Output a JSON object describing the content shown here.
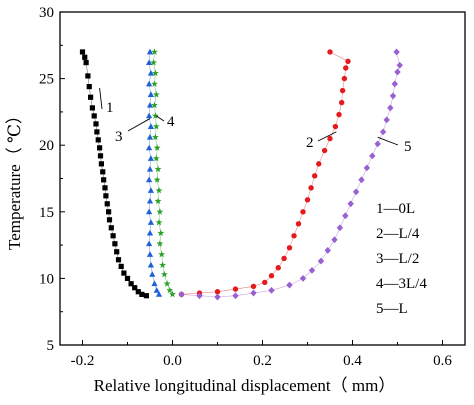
{
  "chart_data": {
    "type": "scatter",
    "xlabel": "Relative longitudinal displacement（ mm）",
    "ylabel": "Temperature（ ℃）",
    "xlim": [
      -0.25,
      0.65
    ],
    "ylim": [
      5,
      30
    ],
    "xticks": [
      "-0.2",
      "0.0",
      "0.2",
      "0.4",
      "0.6"
    ],
    "yticks": [
      "5",
      "10",
      "15",
      "20",
      "25",
      "30"
    ],
    "legend": [
      "1—0L",
      "2—L/4",
      "3—L/2",
      "4—3L/4",
      "5—L"
    ],
    "legend_position": "right-middle",
    "series": [
      {
        "label": "1",
        "color": "#000000",
        "marker": "square",
        "points": [
          [
            -0.2,
            27.0
          ],
          [
            -0.195,
            26.6
          ],
          [
            -0.192,
            26.2
          ],
          [
            -0.188,
            25.2
          ],
          [
            -0.185,
            24.4
          ],
          [
            -0.182,
            23.6
          ],
          [
            -0.178,
            22.8
          ],
          [
            -0.174,
            22.2
          ],
          [
            -0.17,
            21.6
          ],
          [
            -0.168,
            21.0
          ],
          [
            -0.165,
            20.4
          ],
          [
            -0.162,
            19.8
          ],
          [
            -0.16,
            19.2
          ],
          [
            -0.158,
            18.6
          ],
          [
            -0.155,
            18.0
          ],
          [
            -0.153,
            17.4
          ],
          [
            -0.15,
            16.8
          ],
          [
            -0.148,
            16.2
          ],
          [
            -0.145,
            15.6
          ],
          [
            -0.142,
            15.0
          ],
          [
            -0.14,
            14.4
          ],
          [
            -0.136,
            13.8
          ],
          [
            -0.132,
            13.2
          ],
          [
            -0.128,
            12.6
          ],
          [
            -0.124,
            12.0
          ],
          [
            -0.12,
            11.4
          ],
          [
            -0.114,
            10.9
          ],
          [
            -0.108,
            10.4
          ],
          [
            -0.1,
            10.0
          ],
          [
            -0.092,
            9.6
          ],
          [
            -0.084,
            9.3
          ],
          [
            -0.076,
            9.0
          ],
          [
            -0.068,
            8.8
          ],
          [
            -0.058,
            8.7
          ]
        ]
      },
      {
        "label": "2",
        "color": "#e41a1c",
        "marker": "circle",
        "points": [
          [
            0.02,
            8.8
          ],
          [
            0.06,
            8.9
          ],
          [
            0.1,
            9.0
          ],
          [
            0.14,
            9.2
          ],
          [
            0.18,
            9.4
          ],
          [
            0.205,
            9.7
          ],
          [
            0.22,
            10.2
          ],
          [
            0.235,
            10.8
          ],
          [
            0.248,
            11.5
          ],
          [
            0.26,
            12.3
          ],
          [
            0.27,
            13.2
          ],
          [
            0.28,
            14.1
          ],
          [
            0.29,
            15.0
          ],
          [
            0.3,
            15.9
          ],
          [
            0.308,
            16.8
          ],
          [
            0.316,
            17.7
          ],
          [
            0.325,
            18.6
          ],
          [
            0.338,
            19.6
          ],
          [
            0.35,
            20.5
          ],
          [
            0.362,
            21.4
          ],
          [
            0.37,
            22.3
          ],
          [
            0.376,
            23.2
          ],
          [
            0.378,
            24.1
          ],
          [
            0.382,
            25.0
          ],
          [
            0.385,
            25.8
          ],
          [
            0.39,
            26.3
          ],
          [
            0.35,
            27.0
          ]
        ]
      },
      {
        "label": "3",
        "color": "#1f5fd8",
        "marker": "triangle",
        "points": [
          [
            -0.05,
            27.0
          ],
          [
            -0.052,
            26.2
          ],
          [
            -0.048,
            25.4
          ],
          [
            -0.052,
            24.6
          ],
          [
            -0.048,
            23.8
          ],
          [
            -0.05,
            23.0
          ],
          [
            -0.052,
            22.2
          ],
          [
            -0.048,
            21.4
          ],
          [
            -0.05,
            20.6
          ],
          [
            -0.052,
            19.8
          ],
          [
            -0.048,
            19.0
          ],
          [
            -0.05,
            18.2
          ],
          [
            -0.052,
            17.4
          ],
          [
            -0.048,
            16.6
          ],
          [
            -0.05,
            15.8
          ],
          [
            -0.052,
            15.0
          ],
          [
            -0.048,
            14.2
          ],
          [
            -0.05,
            13.4
          ],
          [
            -0.052,
            12.6
          ],
          [
            -0.05,
            11.8
          ],
          [
            -0.048,
            11.0
          ],
          [
            -0.045,
            10.3
          ],
          [
            -0.04,
            9.6
          ],
          [
            -0.035,
            9.1
          ],
          [
            -0.03,
            8.8
          ]
        ]
      },
      {
        "label": "4",
        "color": "#2ca02c",
        "marker": "star",
        "points": [
          [
            -0.04,
            27.0
          ],
          [
            -0.042,
            26.2
          ],
          [
            -0.038,
            25.4
          ],
          [
            -0.04,
            24.6
          ],
          [
            -0.036,
            23.8
          ],
          [
            -0.04,
            23.0
          ],
          [
            -0.038,
            22.2
          ],
          [
            -0.036,
            21.4
          ],
          [
            -0.038,
            20.6
          ],
          [
            -0.034,
            19.8
          ],
          [
            -0.036,
            19.0
          ],
          [
            -0.032,
            18.2
          ],
          [
            -0.034,
            17.4
          ],
          [
            -0.03,
            16.6
          ],
          [
            -0.032,
            15.8
          ],
          [
            -0.028,
            15.0
          ],
          [
            -0.03,
            14.2
          ],
          [
            -0.026,
            13.4
          ],
          [
            -0.028,
            12.6
          ],
          [
            -0.024,
            11.8
          ],
          [
            -0.022,
            11.0
          ],
          [
            -0.018,
            10.3
          ],
          [
            -0.012,
            9.6
          ],
          [
            -0.006,
            9.1
          ],
          [
            0.0,
            8.8
          ]
        ]
      },
      {
        "label": "5",
        "color": "#9a5fd1",
        "marker": "diamond",
        "points": [
          [
            0.02,
            8.8
          ],
          [
            0.06,
            8.7
          ],
          [
            0.1,
            8.6
          ],
          [
            0.14,
            8.7
          ],
          [
            0.18,
            8.9
          ],
          [
            0.22,
            9.1
          ],
          [
            0.26,
            9.5
          ],
          [
            0.29,
            10.0
          ],
          [
            0.31,
            10.6
          ],
          [
            0.33,
            11.3
          ],
          [
            0.345,
            12.1
          ],
          [
            0.36,
            12.9
          ],
          [
            0.372,
            13.8
          ],
          [
            0.384,
            14.7
          ],
          [
            0.396,
            15.6
          ],
          [
            0.408,
            16.5
          ],
          [
            0.42,
            17.4
          ],
          [
            0.432,
            18.3
          ],
          [
            0.444,
            19.2
          ],
          [
            0.456,
            20.1
          ],
          [
            0.468,
            21.0
          ],
          [
            0.476,
            21.9
          ],
          [
            0.484,
            22.8
          ],
          [
            0.49,
            23.7
          ],
          [
            0.494,
            24.6
          ],
          [
            0.5,
            25.5
          ],
          [
            0.505,
            26.0
          ],
          [
            0.498,
            27.0
          ]
        ]
      }
    ],
    "series_labels": [
      {
        "label": "1",
        "text": "1"
      },
      {
        "label": "2",
        "text": "2"
      },
      {
        "label": "3",
        "text": "3"
      },
      {
        "label": "4",
        "text": "4"
      },
      {
        "label": "5",
        "text": "5"
      }
    ]
  }
}
